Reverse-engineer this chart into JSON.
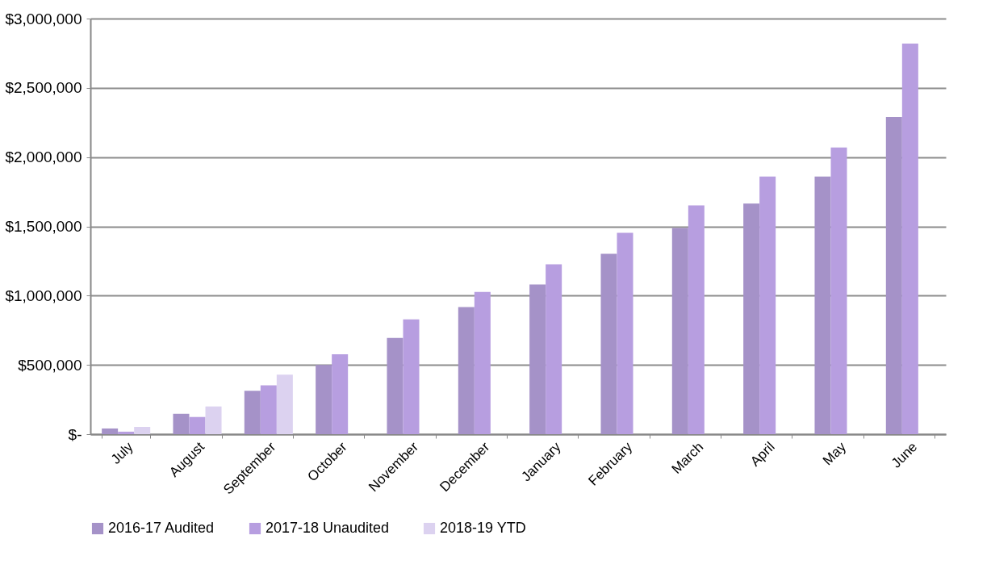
{
  "chart_data": {
    "type": "bar",
    "categories": [
      "July",
      "August",
      "September",
      "October",
      "November",
      "December",
      "January",
      "February",
      "March",
      "April",
      "May",
      "June"
    ],
    "series": [
      {
        "name": "2016-17 Audited",
        "color": "#a592c8",
        "values": [
          41000,
          147000,
          313000,
          500000,
          695000,
          917000,
          1080000,
          1302000,
          1489000,
          1664000,
          1860000,
          2290000
        ]
      },
      {
        "name": "2017-18 Unaudited",
        "color": "#b79ee0",
        "values": [
          18000,
          124000,
          353000,
          576000,
          829000,
          1027000,
          1226000,
          1453000,
          1652000,
          1860000,
          2070000,
          2820000
        ]
      },
      {
        "name": "2018-19 YTD",
        "color": "#dcd2f0",
        "values": [
          53000,
          200000,
          429000,
          null,
          null,
          null,
          null,
          null,
          null,
          null,
          null,
          null
        ]
      }
    ],
    "ylim": [
      0,
      3000000
    ],
    "yticks": [
      {
        "value": 0,
        "label": "$-"
      },
      {
        "value": 500000,
        "label": "$500,000"
      },
      {
        "value": 1000000,
        "label": "$1,000,000"
      },
      {
        "value": 1500000,
        "label": "$1,500,000"
      },
      {
        "value": 2000000,
        "label": "$2,000,000"
      },
      {
        "value": 2500000,
        "label": "$2,500,000"
      },
      {
        "value": 3000000,
        "label": "$3,000,000"
      }
    ],
    "grid": "y",
    "legend": "bottom"
  }
}
